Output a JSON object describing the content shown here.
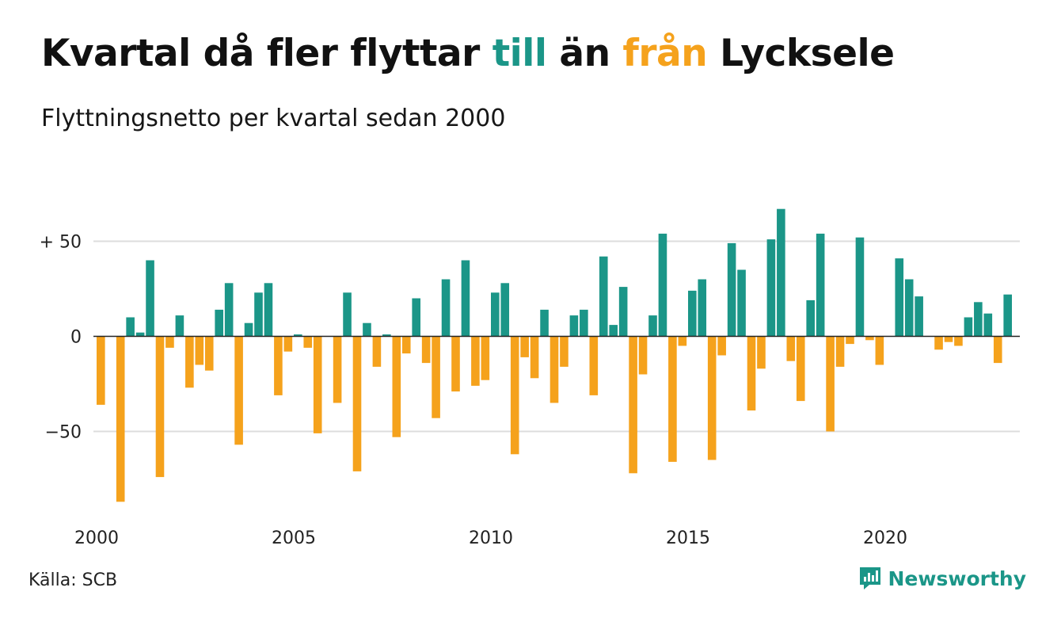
{
  "header": {
    "title_part1": "Kvartal då fler flyttar ",
    "title_till": "till",
    "title_part2": " än ",
    "title_fran": "från",
    "title_part3": " Lycksele",
    "subtitle": "Flyttningsnetto per kvartal sedan 2000"
  },
  "footer": {
    "source": "Källa: SCB",
    "brand": "Newsworthy"
  },
  "colors": {
    "positive": "#1b9688",
    "negative": "#f5a21c",
    "grid": "#dddddd",
    "zero_line": "#222222"
  },
  "chart_data": {
    "type": "bar",
    "title": "Kvartal då fler flyttar till än från Lycksele",
    "subtitle": "Flyttningsnetto per kvartal sedan 2000",
    "start_year": 2000,
    "start_quarter": 1,
    "ylim": [
      -92,
      70
    ],
    "y_ticks": [
      {
        "value": 50,
        "label": "+ 50"
      },
      {
        "value": 0,
        "label": "0"
      },
      {
        "value": -50,
        "label": "−50"
      }
    ],
    "x_ticks": [
      {
        "label": "2000",
        "year": 2000
      },
      {
        "label": "2005",
        "year": 2005
      },
      {
        "label": "2010",
        "year": 2010
      },
      {
        "label": "2015",
        "year": 2015
      },
      {
        "label": "2020",
        "year": 2020
      }
    ],
    "grid": true,
    "values": [
      -36,
      0,
      -87,
      10,
      2,
      40,
      -74,
      -6,
      11,
      -27,
      -15,
      -18,
      14,
      28,
      -57,
      7,
      23,
      28,
      -31,
      -8,
      1,
      -6,
      -51,
      0,
      -35,
      23,
      -71,
      7,
      -16,
      1,
      -53,
      -9,
      20,
      -14,
      -43,
      30,
      -29,
      40,
      -26,
      -23,
      23,
      28,
      -62,
      -11,
      -22,
      14,
      -35,
      -16,
      11,
      14,
      -31,
      42,
      6,
      26,
      -72,
      -20,
      11,
      54,
      -66,
      -5,
      24,
      30,
      -65,
      -10,
      49,
      35,
      -39,
      -17,
      51,
      67,
      -13,
      -34,
      19,
      54,
      -50,
      -16,
      -4,
      52,
      -2,
      -15,
      0,
      41,
      30,
      21,
      0,
      -7,
      -3,
      -5,
      10,
      18,
      12,
      -14,
      22
    ]
  }
}
